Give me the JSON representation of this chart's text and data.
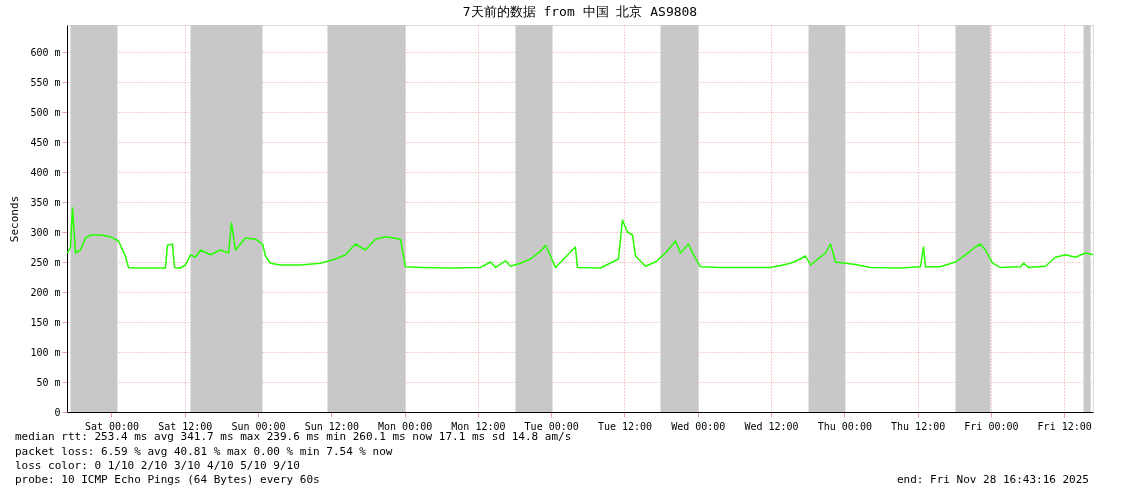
{
  "chart_data": {
    "type": "line",
    "title": "7天前的数据 from 中国 北京 AS9808",
    "ylabel": "Seconds",
    "x": [
      "2025-11-21T16:48",
      "2025-11-21T17:17",
      "2025-11-21T17:37",
      "2025-11-21T18:07",
      "2025-11-21T18:55",
      "2025-11-21T19:44",
      "2025-11-21T20:34",
      "2025-11-21T22:12",
      "2025-11-21T23:50",
      "2025-11-22T01:09",
      "2025-11-22T02:17",
      "2025-11-22T02:47",
      "2025-11-22T03:56",
      "2025-11-22T08:50",
      "2025-11-22T09:10",
      "2025-11-22T09:59",
      "2025-11-22T10:19",
      "2025-11-22T11:18",
      "2025-11-22T12:07",
      "2025-11-22T12:56",
      "2025-11-22T13:45",
      "2025-11-22T14:34",
      "2025-11-22T16:13",
      "2025-11-22T17:51",
      "2025-11-22T19:10",
      "2025-11-22T19:39",
      "2025-11-22T20:18",
      "2025-11-22T21:56",
      "2025-11-22T23:35",
      "2025-11-23T00:44",
      "2025-11-23T01:13",
      "2025-11-23T02:02",
      "2025-11-23T03:40",
      "2025-11-23T06:57",
      "2025-11-23T10:13",
      "2025-11-23T12:41",
      "2025-11-23T14:19",
      "2025-11-23T15:57",
      "2025-11-23T17:35",
      "2025-11-23T19:14",
      "2025-11-23T20:52",
      "2025-11-23T23:19",
      "2025-11-24T00:08",
      "2025-11-24T02:36",
      "2025-11-24T07:31",
      "2025-11-24T12:25",
      "2025-11-24T14:04",
      "2025-11-24T14:53",
      "2025-11-24T16:31",
      "2025-11-24T17:20",
      "2025-11-24T18:58",
      "2025-11-24T20:37",
      "2025-11-24T22:15",
      "2025-11-24T23:04",
      "2025-11-24T23:53",
      "2025-11-25T00:42",
      "2025-11-25T03:58",
      "2025-11-25T04:18",
      "2025-11-25T08:04",
      "2025-11-25T11:01",
      "2025-11-25T11:40",
      "2025-11-25T12:29",
      "2025-11-25T13:19",
      "2025-11-25T13:48",
      "2025-11-25T15:26",
      "2025-11-25T17:05",
      "2025-11-25T18:43",
      "2025-11-25T19:32",
      "2025-11-25T20:21",
      "2025-11-25T21:10",
      "2025-11-25T22:29",
      "2025-11-25T23:18",
      "2025-11-26T00:27",
      "2025-11-26T03:43",
      "2025-11-26T11:54",
      "2025-11-26T13:33",
      "2025-11-26T15:11",
      "2025-11-26T16:49",
      "2025-11-26T17:38",
      "2025-11-26T18:28",
      "2025-11-26T20:55",
      "2025-11-26T21:44",
      "2025-11-26T22:33",
      "2025-11-27T00:11",
      "2025-11-27T01:50",
      "2025-11-27T04:17",
      "2025-11-27T09:12",
      "2025-11-27T12:28",
      "2025-11-27T12:58",
      "2025-11-27T13:17",
      "2025-11-27T15:44",
      "2025-11-27T18:12",
      "2025-11-27T19:50",
      "2025-11-27T21:28",
      "2025-11-27T22:17",
      "2025-11-27T23:07",
      "2025-11-28T00:16",
      "2025-11-28T01:34",
      "2025-11-28T04:50",
      "2025-11-28T05:20",
      "2025-11-28T06:10",
      "2025-11-28T08:56",
      "2025-11-28T10:35",
      "2025-11-28T12:13",
      "2025-11-28T13:51",
      "2025-11-28T15:29",
      "2025-11-28T16:42"
    ],
    "series": [
      {
        "color": "#26ff00",
        "values": [
          265,
          275,
          340,
          265,
          270,
          290,
          295,
          295,
          292,
          285,
          260,
          241,
          240,
          240,
          278,
          280,
          241,
          240,
          245,
          262,
          258,
          270,
          262,
          270,
          265,
          315,
          270,
          290,
          288,
          280,
          260,
          248,
          245,
          245,
          248,
          255,
          262,
          280,
          270,
          288,
          292,
          288,
          242,
          241,
          240,
          241,
          250,
          241,
          252,
          243,
          248,
          255,
          268,
          278,
          260,
          241,
          275,
          241,
          240,
          255,
          320,
          300,
          295,
          260,
          243,
          250,
          265,
          275,
          285,
          265,
          280,
          262,
          242,
          241,
          241,
          244,
          248,
          255,
          260,
          245,
          265,
          280,
          250,
          248,
          246,
          241,
          240,
          242,
          275,
          242,
          242,
          250,
          262,
          275,
          280,
          270,
          248,
          241,
          242,
          248,
          241,
          243,
          258,
          262,
          258,
          265,
          262
        ]
      }
    ],
    "xlim": [
      "2025-11-21T16:43",
      "2025-11-28T16:43"
    ],
    "xticks": [
      {
        "value": "2025-11-22T00:00",
        "label": "Sat 00:00"
      },
      {
        "value": "2025-11-22T12:00",
        "label": "Sat 12:00"
      },
      {
        "value": "2025-11-23T00:00",
        "label": "Sun 00:00"
      },
      {
        "value": "2025-11-23T12:00",
        "label": "Sun 12:00"
      },
      {
        "value": "2025-11-24T00:00",
        "label": "Mon 00:00"
      },
      {
        "value": "2025-11-24T12:00",
        "label": "Mon 12:00"
      },
      {
        "value": "2025-11-25T00:00",
        "label": "Tue 00:00"
      },
      {
        "value": "2025-11-25T12:00",
        "label": "Tue 12:00"
      },
      {
        "value": "2025-11-26T00:00",
        "label": "Wed 00:00"
      },
      {
        "value": "2025-11-26T12:00",
        "label": "Wed 12:00"
      },
      {
        "value": "2025-11-27T00:00",
        "label": "Thu 00:00"
      },
      {
        "value": "2025-11-27T12:00",
        "label": "Thu 12:00"
      },
      {
        "value": "2025-11-28T00:00",
        "label": "Fri 00:00"
      },
      {
        "value": "2025-11-28T12:00",
        "label": "Fri 12:00"
      }
    ],
    "ylim": [
      0,
      645
    ],
    "yticks": [
      {
        "value": 0,
        "label": "0"
      },
      {
        "value": 50,
        "label": "50 m"
      },
      {
        "value": 100,
        "label": "100 m"
      },
      {
        "value": 150,
        "label": "150 m"
      },
      {
        "value": 200,
        "label": "200 m"
      },
      {
        "value": 250,
        "label": "250 m"
      },
      {
        "value": 300,
        "label": "300 m"
      },
      {
        "value": 350,
        "label": "350 m"
      },
      {
        "value": 400,
        "label": "400 m"
      },
      {
        "value": 450,
        "label": "450 m"
      },
      {
        "value": 500,
        "label": "500 m"
      },
      {
        "value": 550,
        "label": "550 m"
      },
      {
        "value": 600,
        "label": "600 m"
      }
    ],
    "bands": [
      {
        "axis": "x",
        "from": "2025-11-21T17:17",
        "to": "2025-11-22T00:59",
        "color": "#c8c8c8"
      },
      {
        "axis": "x",
        "from": "2025-11-22T12:56",
        "to": "2025-11-23T00:44",
        "color": "#c8c8c8"
      },
      {
        "axis": "x",
        "from": "2025-11-23T11:22",
        "to": "2025-11-24T00:08",
        "color": "#c8c8c8"
      },
      {
        "axis": "x",
        "from": "2025-11-24T18:09",
        "to": "2025-11-25T00:13",
        "color": "#c8c8c8"
      },
      {
        "axis": "x",
        "from": "2025-11-25T17:54",
        "to": "2025-11-26T00:07",
        "color": "#c8c8c8"
      },
      {
        "axis": "x",
        "from": "2025-11-26T18:08",
        "to": "2025-11-27T00:11",
        "color": "#c8c8c8"
      },
      {
        "axis": "x",
        "from": "2025-11-27T18:12",
        "to": "2025-11-27T23:56",
        "color": "#c8c8c8"
      },
      {
        "axis": "x",
        "from": "2025-11-28T15:10",
        "to": "2025-11-28T16:19",
        "color": "#c8c8c8"
      }
    ],
    "grid": true,
    "line_style": "solid",
    "annotations": [
      "median rtt:  253.4 ms avg  341.7 ms max  239.6 ms min  260.1 ms now  17.1 ms sd  14.8   am/s",
      "packet loss: 6.59 % avg  40.81 % max  0.00 % min  7.54 % now",
      "loss color:  0  1/10  2/10  3/10  4/10  5/10  9/10",
      "probe:       10 ICMP Echo Pings (64 Bytes) every 60s",
      "end: Fri Nov 28 16:43:16 2025"
    ]
  }
}
